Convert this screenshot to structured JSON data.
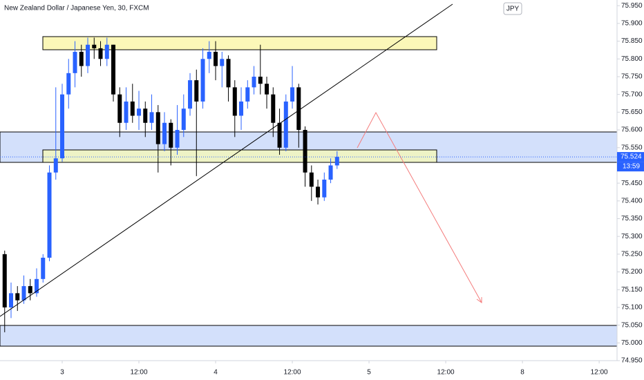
{
  "chart_data": {
    "type": "candlestick",
    "title": "New Zealand Dollar / Japanese Yen, 30, FXCM",
    "currency": "JPY",
    "last_price": 75.524,
    "countdown": "13:59",
    "up_color": "#2962ff",
    "down_color": "#000000",
    "x": [
      -9,
      -8,
      -7,
      -6,
      -5,
      -4,
      -3,
      -2,
      -1,
      0,
      1,
      2,
      3,
      4,
      5,
      6,
      7,
      8,
      9,
      10,
      11,
      12,
      13,
      14,
      15,
      16,
      17,
      18,
      19,
      20,
      21,
      22,
      23,
      24,
      25,
      26,
      27,
      28,
      29,
      30,
      31,
      32,
      33,
      34,
      35,
      36,
      37,
      38,
      39,
      40,
      41,
      42,
      43
    ],
    "open": [
      75.25,
      75.1,
      75.14,
      75.12,
      75.16,
      75.14,
      75.18,
      75.24,
      75.48,
      75.52,
      75.7,
      75.76,
      75.82,
      75.78,
      75.84,
      75.83,
      75.8,
      75.84,
      75.7,
      75.62,
      75.68,
      75.64,
      75.66,
      75.62,
      75.65,
      75.56,
      75.62,
      75.55,
      75.6,
      75.66,
      75.74,
      75.68,
      75.8,
      75.82,
      75.78,
      75.8,
      75.72,
      75.64,
      75.68,
      75.72,
      75.75,
      75.73,
      75.7,
      75.62,
      75.55,
      75.68,
      75.72,
      75.6,
      75.48,
      75.44,
      75.41,
      75.46,
      75.5
    ],
    "high": [
      75.26,
      75.17,
      75.16,
      75.19,
      75.18,
      75.21,
      75.25,
      75.5,
      75.72,
      75.73,
      75.8,
      75.85,
      75.84,
      75.86,
      75.86,
      75.85,
      75.86,
      75.84,
      75.72,
      75.72,
      75.73,
      75.71,
      75.68,
      75.7,
      75.67,
      75.65,
      75.63,
      75.67,
      75.7,
      75.76,
      75.77,
      75.83,
      75.85,
      75.85,
      75.82,
      75.81,
      75.74,
      75.72,
      75.74,
      75.78,
      75.84,
      75.75,
      75.72,
      75.66,
      75.7,
      75.78,
      75.73,
      75.61,
      75.5,
      75.46,
      75.48,
      75.52,
      75.54
    ],
    "low": [
      75.03,
      75.07,
      75.09,
      75.11,
      75.12,
      75.13,
      75.17,
      75.23,
      75.46,
      75.51,
      75.66,
      75.72,
      75.75,
      75.76,
      75.8,
      75.78,
      75.78,
      75.68,
      75.58,
      75.6,
      75.62,
      75.6,
      75.58,
      75.6,
      75.48,
      75.54,
      75.5,
      75.53,
      75.58,
      75.64,
      75.47,
      75.66,
      75.76,
      75.74,
      75.72,
      75.68,
      75.58,
      75.6,
      75.66,
      75.7,
      75.7,
      75.66,
      75.58,
      75.53,
      75.54,
      75.66,
      75.55,
      75.44,
      75.4,
      75.39,
      75.4,
      75.45,
      75.49
    ],
    "close": [
      75.1,
      75.14,
      75.12,
      75.16,
      75.14,
      75.18,
      75.24,
      75.48,
      75.52,
      75.7,
      75.76,
      75.82,
      75.78,
      75.84,
      75.83,
      75.8,
      75.84,
      75.7,
      75.62,
      75.68,
      75.64,
      75.66,
      75.62,
      75.65,
      75.56,
      75.62,
      75.55,
      75.6,
      75.66,
      75.74,
      75.68,
      75.8,
      75.82,
      75.78,
      75.8,
      75.72,
      75.64,
      75.68,
      75.72,
      75.75,
      75.73,
      75.7,
      75.62,
      75.55,
      75.68,
      75.72,
      75.6,
      75.48,
      75.44,
      75.41,
      75.46,
      75.5,
      75.524
    ],
    "xlim": [
      -9.73,
      86.8
    ],
    "xticks": [
      {
        "value": 0,
        "label": "3"
      },
      {
        "value": 12,
        "label": "12:00"
      },
      {
        "value": 24,
        "label": "4"
      },
      {
        "value": 36,
        "label": "12:00"
      },
      {
        "value": 48,
        "label": "5"
      },
      {
        "value": 60,
        "label": "12:00"
      },
      {
        "value": 72,
        "label": "8"
      },
      {
        "value": 84,
        "label": "12:00"
      }
    ],
    "ylim": [
      74.95,
      75.966
    ],
    "yticks": [
      {
        "value": 74.95,
        "label": "74.950"
      },
      {
        "value": 75.0,
        "label": "75.000"
      },
      {
        "value": 75.05,
        "label": "75.050"
      },
      {
        "value": 75.1,
        "label": "75.100"
      },
      {
        "value": 75.15,
        "label": "75.150"
      },
      {
        "value": 75.2,
        "label": "75.200"
      },
      {
        "value": 75.25,
        "label": "75.250"
      },
      {
        "value": 75.3,
        "label": "75.300"
      },
      {
        "value": 75.35,
        "label": "75.350"
      },
      {
        "value": 75.4,
        "label": "75.400"
      },
      {
        "value": 75.45,
        "label": "75.450"
      },
      {
        "value": 75.5,
        "label": "75.500"
      },
      {
        "value": 75.55,
        "label": "75.550"
      },
      {
        "value": 75.6,
        "label": "75.600"
      },
      {
        "value": 75.65,
        "label": "75.650"
      },
      {
        "value": 75.7,
        "label": "75.700"
      },
      {
        "value": 75.75,
        "label": "75.750"
      },
      {
        "value": 75.8,
        "label": "75.800"
      },
      {
        "value": 75.85,
        "label": "75.850"
      },
      {
        "value": 75.9,
        "label": "75.900"
      },
      {
        "value": 75.95,
        "label": "75.950"
      }
    ]
  }
}
